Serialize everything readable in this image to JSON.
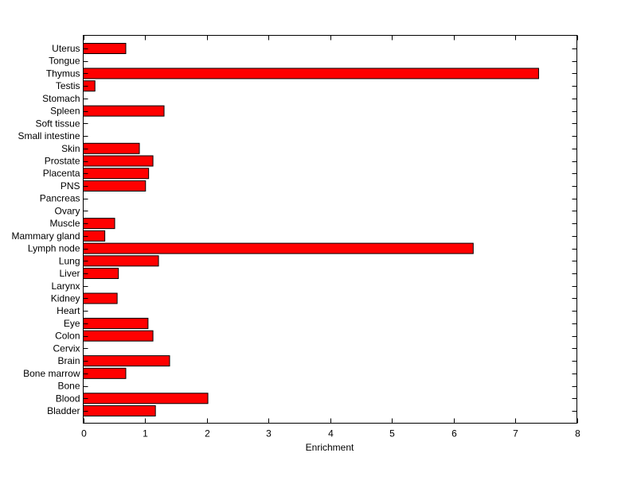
{
  "chart_data": {
    "type": "bar",
    "orientation": "horizontal",
    "xlabel": "Enrichment",
    "ylabel": "",
    "title": "",
    "xlim": [
      0,
      8
    ],
    "xticks": [
      0,
      1,
      2,
      3,
      4,
      5,
      6,
      7,
      8
    ],
    "grid": false,
    "bar_color": "#ff0000",
    "categories": [
      "Uterus",
      "Tongue",
      "Thymus",
      "Testis",
      "Stomach",
      "Spleen",
      "Soft tissue",
      "Small intestine",
      "Skin",
      "Prostate",
      "Placenta",
      "PNS",
      "Pancreas",
      "Ovary",
      "Muscle",
      "Mammary gland",
      "Lymph node",
      "Lung",
      "Liver",
      "Larynx",
      "Kidney",
      "Heart",
      "Eye",
      "Colon",
      "Cervix",
      "Brain",
      "Bone marrow",
      "Bone",
      "Blood",
      "Bladder"
    ],
    "values": [
      0.69,
      0,
      7.38,
      0.19,
      0,
      1.31,
      0,
      0,
      0.91,
      1.13,
      1.06,
      1.01,
      0,
      0,
      0.51,
      0.35,
      6.32,
      1.22,
      0.57,
      0,
      0.55,
      0,
      1.05,
      1.13,
      0,
      1.4,
      0.69,
      0,
      2.02,
      1.17
    ]
  }
}
